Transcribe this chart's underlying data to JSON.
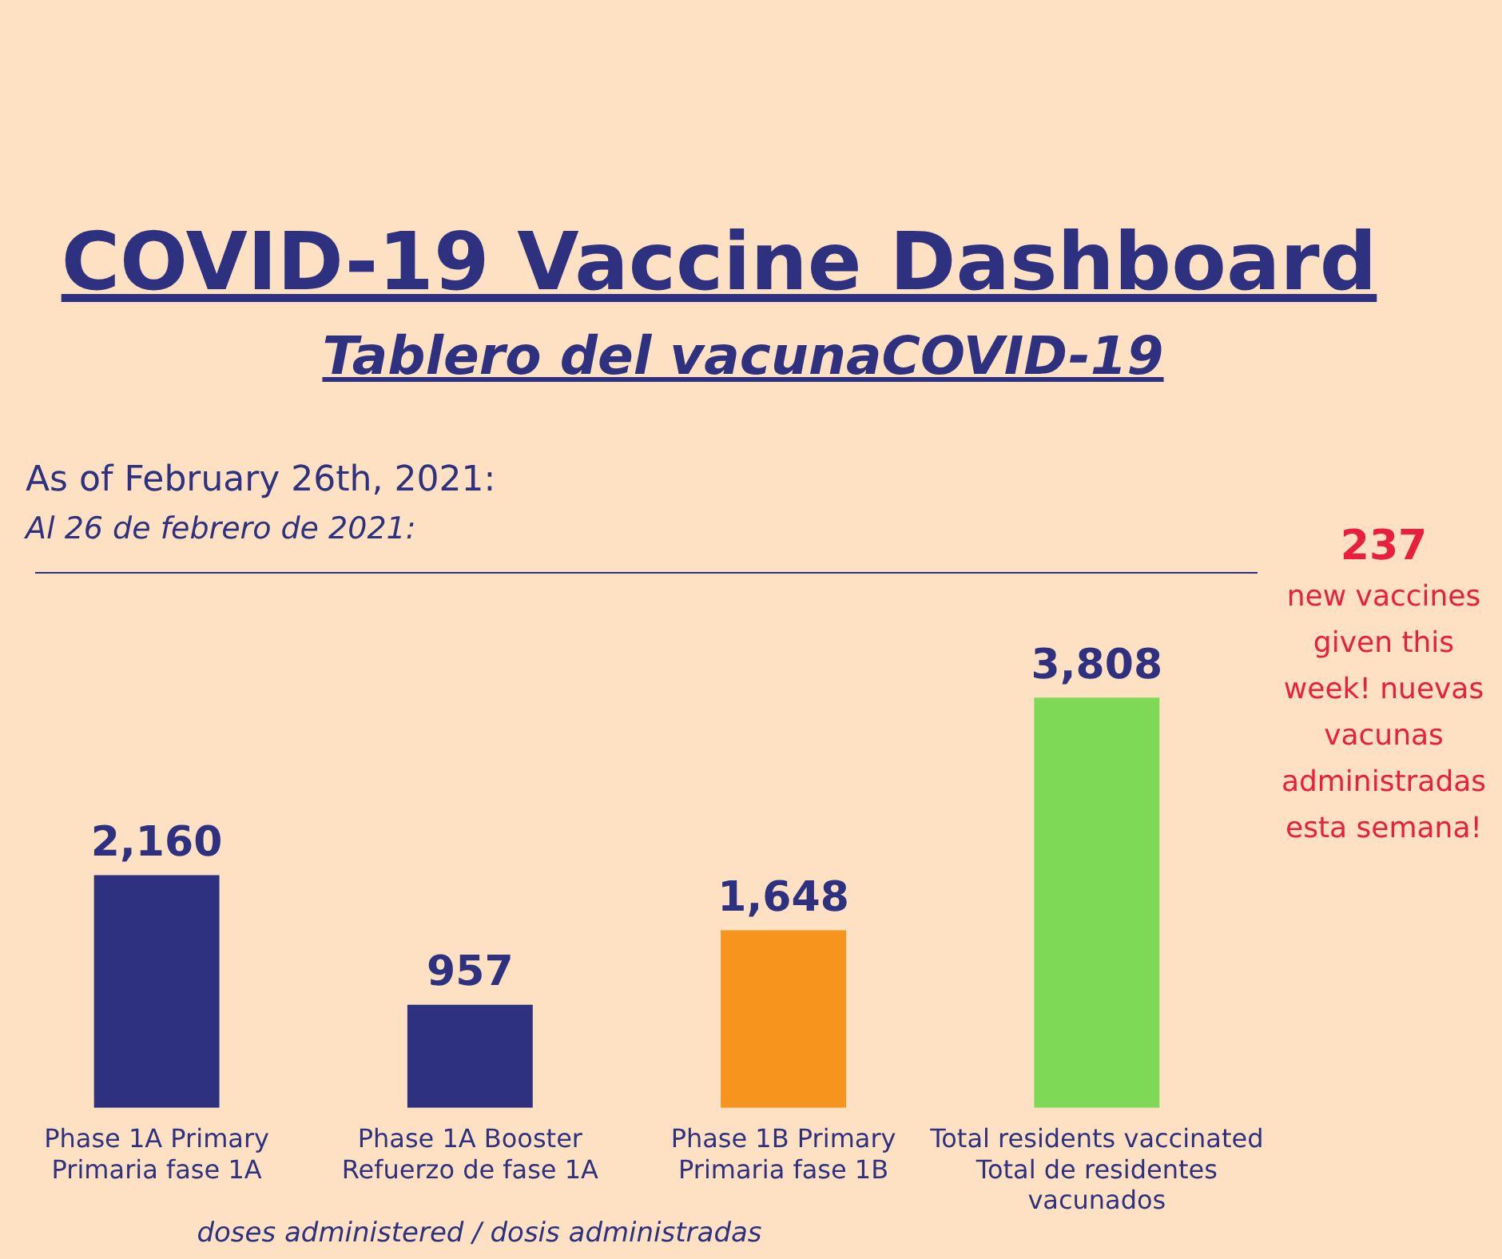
{
  "chart_data": {
    "type": "bar",
    "title": "COVID-19 Vaccine Dashboard",
    "subtitle": "Tablero del vacunaCOVID-19",
    "categories": [
      [
        "Phase 1A Primary",
        "Primaria fase 1A"
      ],
      [
        "Phase 1A Booster",
        "Refuerzo de fase 1A"
      ],
      [
        "Phase 1B Primary",
        "Primaria fase 1B"
      ],
      [
        "Total residents vaccinated",
        "Total de residentes",
        "vacunados"
      ]
    ],
    "values": [
      2160,
      957,
      1648,
      3808
    ],
    "colors": [
      "#2e3180",
      "#2e3180",
      "#f7941d",
      "#7ed957"
    ],
    "value_labels": [
      "2,160",
      "957",
      "1,648",
      "3,808"
    ],
    "xlabel": "doses administered / dosis administradas",
    "annotations": [
      "As of February 26th, 2021:",
      "Al 26 de febrero de 2021:",
      "237 new vaccines given this week! nuevas vacunas administradas esta semana!"
    ],
    "grid": false,
    "legend": false
  }
}
